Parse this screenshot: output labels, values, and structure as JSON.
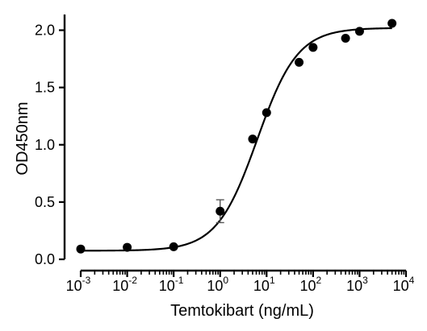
{
  "chart_data": {
    "type": "scatter",
    "title": "",
    "xlabel": "Temtokibart (ng/mL)",
    "ylabel": "OD450nm",
    "x_scale": "log",
    "xlim": [
      0.001,
      10000
    ],
    "ylim": [
      0,
      2.1
    ],
    "x_ticks": [
      {
        "value": 0.001,
        "base": "10",
        "exp": "-3"
      },
      {
        "value": 0.01,
        "base": "10",
        "exp": "-2"
      },
      {
        "value": 0.1,
        "base": "10",
        "exp": "-1"
      },
      {
        "value": 1,
        "base": "10",
        "exp": "0"
      },
      {
        "value": 10,
        "base": "10",
        "exp": "1"
      },
      {
        "value": 100,
        "base": "10",
        "exp": "2"
      },
      {
        "value": 1000,
        "base": "10",
        "exp": "3"
      },
      {
        "value": 10000,
        "base": "10",
        "exp": "4"
      }
    ],
    "y_ticks": [
      {
        "value": 0,
        "label": "0.0"
      },
      {
        "value": 0.5,
        "label": "0.5"
      },
      {
        "value": 1.0,
        "label": "1.0"
      },
      {
        "value": 1.5,
        "label": "1.5"
      },
      {
        "value": 2.0,
        "label": "2.0"
      }
    ],
    "grid": false,
    "series": [
      {
        "points": [
          {
            "x": 0.001,
            "y": 0.09
          },
          {
            "x": 0.01,
            "y": 0.105
          },
          {
            "x": 0.1,
            "y": 0.11
          },
          {
            "x": 1,
            "y": 0.42,
            "err": 0.1
          },
          {
            "x": 5,
            "y": 1.05
          },
          {
            "x": 10,
            "y": 1.28
          },
          {
            "x": 50,
            "y": 1.72
          },
          {
            "x": 100,
            "y": 1.85
          },
          {
            "x": 500,
            "y": 1.93
          },
          {
            "x": 1000,
            "y": 1.99
          },
          {
            "x": 5000,
            "y": 2.06
          }
        ],
        "fit": {
          "type": "4PL",
          "bottom": 0.075,
          "top": 2.02,
          "ec50": 6.3,
          "hill": 1.0
        }
      }
    ],
    "colors": {
      "marker": "#000000",
      "curve": "#000000",
      "errorbar": "#555555"
    }
  }
}
